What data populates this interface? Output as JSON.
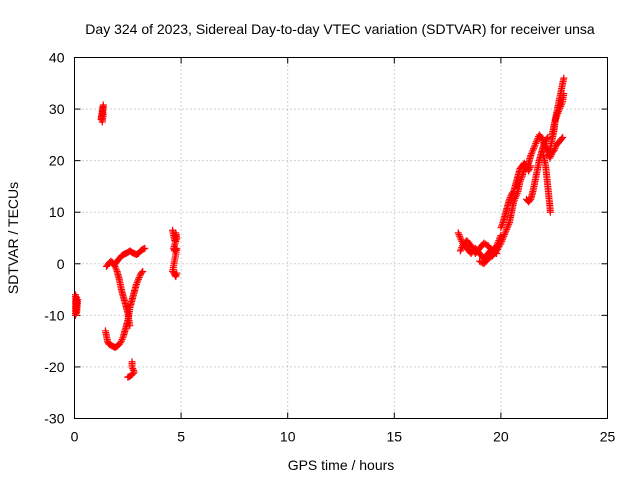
{
  "chart_data": {
    "type": "scatter",
    "title": "Day 324 of 2023, Sidereal Day-to-day VTEC variation (SDTVAR) for receiver unsa",
    "xlabel": "GPS time / hours",
    "ylabel": "SDTVAR / TECUs",
    "xlim": [
      0,
      25
    ],
    "ylim": [
      -30,
      40
    ],
    "xticks": [
      0,
      5,
      10,
      15,
      20,
      25
    ],
    "yticks": [
      -30,
      -20,
      -10,
      0,
      10,
      20,
      30,
      40
    ],
    "xtick_labels": [
      "0",
      "5",
      "10",
      "15",
      "20",
      "25"
    ],
    "ytick_labels": [
      "-30",
      "-20",
      "-10",
      "0",
      "10",
      "20",
      "30",
      "40"
    ],
    "grid": true,
    "marker": "+",
    "series": [
      {
        "name": "SDTVAR",
        "color": "#ff0000",
        "segments": [
          [
            [
              0.05,
              -6
            ],
            [
              0.05,
              -7
            ],
            [
              0.05,
              -8
            ],
            [
              0.05,
              -9
            ],
            [
              0.05,
              -10
            ],
            [
              0.1,
              -6.5
            ],
            [
              0.1,
              -8.5
            ],
            [
              0.1,
              -9.5
            ],
            [
              0.15,
              -7
            ]
          ],
          [
            [
              1.25,
              28
            ],
            [
              1.27,
              28.8
            ],
            [
              1.3,
              29.5
            ],
            [
              1.32,
              30
            ],
            [
              1.35,
              30.8
            ],
            [
              1.3,
              27.5
            ],
            [
              1.35,
              29
            ]
          ],
          [
            [
              1.45,
              -13
            ],
            [
              1.5,
              -14
            ],
            [
              1.55,
              -15
            ],
            [
              1.6,
              -15.5
            ],
            [
              1.7,
              -15.8
            ],
            [
              1.8,
              -16
            ],
            [
              1.9,
              -16.2
            ],
            [
              2.0,
              -16
            ],
            [
              2.1,
              -15.6
            ],
            [
              2.2,
              -15
            ],
            [
              2.3,
              -14
            ],
            [
              2.4,
              -12.5
            ],
            [
              2.5,
              -11
            ],
            [
              2.55,
              -10
            ],
            [
              2.6,
              -8.5
            ],
            [
              2.7,
              -7
            ],
            [
              2.8,
              -5.5
            ],
            [
              2.9,
              -4
            ],
            [
              3.0,
              -3
            ],
            [
              3.1,
              -2
            ],
            [
              3.2,
              -1.5
            ]
          ],
          [
            [
              1.5,
              -0.5
            ],
            [
              1.6,
              0
            ],
            [
              1.7,
              0.5
            ],
            [
              1.8,
              0.2
            ],
            [
              1.9,
              -0.5
            ],
            [
              2.0,
              -1.5
            ],
            [
              2.1,
              -3
            ],
            [
              2.2,
              -5
            ],
            [
              2.3,
              -6.5
            ],
            [
              2.4,
              -8
            ],
            [
              2.5,
              -9.5
            ],
            [
              2.55,
              -11
            ],
            [
              2.6,
              -12
            ]
          ],
          [
            [
              1.9,
              0
            ],
            [
              2.0,
              0.5
            ],
            [
              2.1,
              1
            ],
            [
              2.2,
              1.5
            ],
            [
              2.3,
              1.8
            ],
            [
              2.4,
              2
            ],
            [
              2.5,
              2.2
            ],
            [
              2.6,
              2.5
            ],
            [
              2.7,
              2.2
            ],
            [
              2.8,
              2
            ],
            [
              2.9,
              1.8
            ],
            [
              3.0,
              2
            ],
            [
              3.1,
              2.5
            ],
            [
              3.2,
              2.8
            ],
            [
              3.3,
              3
            ]
          ],
          [
            [
              2.5,
              -22
            ],
            [
              2.6,
              -21.8
            ],
            [
              2.7,
              -21.5
            ],
            [
              2.8,
              -21
            ],
            [
              2.7,
              -20
            ],
            [
              2.7,
              -19
            ]
          ],
          [
            [
              4.6,
              6.5
            ],
            [
              4.65,
              5.5
            ],
            [
              4.7,
              4.5
            ],
            [
              4.75,
              6
            ],
            [
              4.8,
              5
            ],
            [
              4.65,
              3
            ],
            [
              4.7,
              2.5
            ],
            [
              4.8,
              3
            ],
            [
              4.6,
              -1.5
            ],
            [
              4.7,
              -2
            ],
            [
              4.75,
              -2.5
            ],
            [
              4.8,
              -1.8
            ]
          ],
          [
            [
              18.0,
              6
            ],
            [
              18.1,
              5
            ],
            [
              18.2,
              4
            ],
            [
              18.3,
              3.5
            ],
            [
              18.4,
              3
            ],
            [
              18.5,
              2.5
            ],
            [
              18.6,
              2
            ],
            [
              18.7,
              2.5
            ],
            [
              18.8,
              3
            ],
            [
              18.9,
              2.5
            ],
            [
              19.0,
              2
            ],
            [
              19.1,
              1.5
            ],
            [
              19.2,
              1
            ],
            [
              19.3,
              1.5
            ],
            [
              19.4,
              2
            ],
            [
              19.5,
              2.5
            ],
            [
              19.6,
              2
            ],
            [
              19.7,
              3
            ],
            [
              19.8,
              3.5
            ],
            [
              19.9,
              4.5
            ],
            [
              20.0,
              5.5
            ]
          ],
          [
            [
              18.1,
              2.5
            ],
            [
              18.2,
              3.5
            ],
            [
              18.4,
              4.5
            ],
            [
              18.6,
              3.5
            ],
            [
              18.8,
              2
            ],
            [
              19.0,
              3
            ],
            [
              19.2,
              4
            ],
            [
              19.4,
              3.5
            ],
            [
              19.6,
              2.5
            ],
            [
              19.8,
              2
            ]
          ],
          [
            [
              19.0,
              0.5
            ],
            [
              19.2,
              0
            ],
            [
              19.4,
              1
            ],
            [
              19.6,
              1.5
            ],
            [
              19.8,
              2.5
            ],
            [
              20.0,
              4
            ],
            [
              20.2,
              6
            ],
            [
              20.4,
              8
            ],
            [
              20.5,
              10
            ],
            [
              20.6,
              12
            ],
            [
              20.7,
              13
            ],
            [
              20.8,
              14
            ],
            [
              20.9,
              16
            ],
            [
              21.0,
              17
            ],
            [
              21.1,
              18.5
            ]
          ],
          [
            [
              20.0,
              7
            ],
            [
              20.1,
              8
            ],
            [
              20.2,
              9.5
            ],
            [
              20.3,
              11
            ],
            [
              20.4,
              12.5
            ],
            [
              20.5,
              13.5
            ],
            [
              20.6,
              14
            ],
            [
              20.7,
              15.5
            ],
            [
              20.8,
              17
            ],
            [
              20.9,
              18.5
            ],
            [
              21.0,
              19
            ],
            [
              21.1,
              19.5
            ],
            [
              21.2,
              19
            ],
            [
              21.3,
              18
            ],
            [
              21.4,
              19
            ]
          ],
          [
            [
              21.2,
              12.5
            ],
            [
              21.3,
              12
            ],
            [
              21.4,
              12.5
            ],
            [
              21.5,
              14
            ],
            [
              21.6,
              16
            ],
            [
              21.7,
              18
            ],
            [
              21.8,
              20
            ],
            [
              21.9,
              21.5
            ],
            [
              22.0,
              23
            ],
            [
              22.1,
              24
            ],
            [
              22.2,
              24.5
            ]
          ],
          [
            [
              21.3,
              19.5
            ],
            [
              21.4,
              21
            ],
            [
              21.5,
              22
            ],
            [
              21.6,
              23
            ],
            [
              21.7,
              24
            ],
            [
              21.8,
              25
            ],
            [
              21.9,
              24.5
            ],
            [
              22.0,
              23.5
            ],
            [
              22.1,
              22.5
            ],
            [
              22.2,
              21.5
            ],
            [
              22.3,
              20.5
            ],
            [
              22.4,
              21.5
            ],
            [
              22.5,
              22
            ],
            [
              22.6,
              23
            ],
            [
              22.7,
              23.5
            ],
            [
              22.8,
              24
            ],
            [
              22.9,
              24.5
            ]
          ],
          [
            [
              22.0,
              21
            ],
            [
              22.1,
              19
            ],
            [
              22.15,
              17
            ],
            [
              22.2,
              15
            ],
            [
              22.25,
              13
            ],
            [
              22.3,
              11
            ],
            [
              22.32,
              10
            ]
          ],
          [
            [
              22.3,
              22
            ],
            [
              22.4,
              24
            ],
            [
              22.5,
              26
            ],
            [
              22.55,
              28
            ],
            [
              22.6,
              29
            ],
            [
              22.65,
              30
            ],
            [
              22.7,
              31
            ],
            [
              22.75,
              32
            ],
            [
              22.8,
              33
            ],
            [
              22.85,
              34
            ],
            [
              22.9,
              35
            ],
            [
              22.95,
              36
            ]
          ],
          [
            [
              22.4,
              25
            ],
            [
              22.5,
              27
            ],
            [
              22.6,
              28.5
            ],
            [
              22.7,
              29.5
            ],
            [
              22.8,
              30.5
            ],
            [
              22.9,
              31.5
            ],
            [
              22.95,
              33
            ]
          ]
        ]
      }
    ]
  }
}
